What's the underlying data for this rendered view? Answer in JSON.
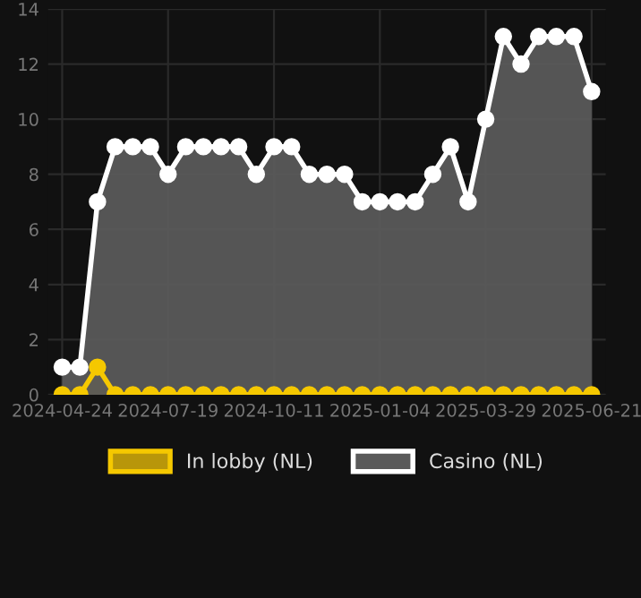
{
  "chart_data": {
    "type": "area",
    "categories": [
      "2024-04-24",
      null,
      null,
      null,
      null,
      null,
      "2024-07-19",
      null,
      null,
      null,
      null,
      null,
      "2024-10-11",
      null,
      null,
      null,
      null,
      null,
      "2025-01-04",
      null,
      null,
      null,
      null,
      null,
      "2025-03-29",
      null,
      null,
      null,
      null,
      null,
      "2025-06-21"
    ],
    "series": [
      {
        "name": "In lobby (NL)",
        "color": "#f5c800",
        "values": [
          0,
          0,
          1,
          0,
          0,
          0,
          0,
          0,
          0,
          0,
          0,
          0,
          0,
          0,
          0,
          0,
          0,
          0,
          0,
          0,
          0,
          0,
          0,
          0,
          0,
          0,
          0,
          0,
          0,
          0,
          0
        ]
      },
      {
        "name": "Casino (NL)",
        "color": "#ffffff",
        "values": [
          1,
          1,
          7,
          9,
          9,
          9,
          8,
          9,
          9,
          9,
          9,
          8,
          9,
          9,
          8,
          8,
          8,
          7,
          7,
          7,
          7,
          8,
          9,
          7,
          10,
          13,
          12,
          13,
          13,
          13,
          11
        ]
      }
    ],
    "ylim": [
      0,
      14
    ],
    "yticks": [
      0,
      2,
      4,
      6,
      8,
      10,
      12,
      14
    ],
    "grid": true,
    "legend": "bottom",
    "marker": "circle",
    "line_style": "solid"
  }
}
